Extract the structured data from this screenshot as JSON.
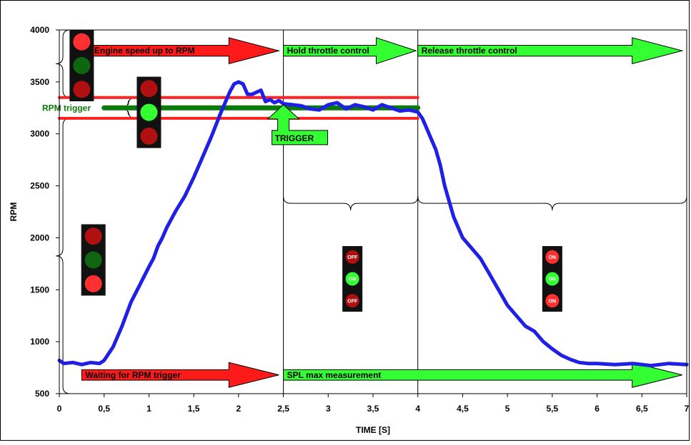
{
  "chart_data": {
    "type": "line",
    "title": "",
    "xlabel": "TIME [S]",
    "ylabel": "RPM",
    "xlim": [
      0,
      7
    ],
    "ylim": [
      500,
      4000
    ],
    "xticks": [
      "0",
      "0,5",
      "1",
      "1,5",
      "2",
      "2,5",
      "3",
      "3,5",
      "4",
      "4,5",
      "5",
      "5,5",
      "6",
      "6,5",
      "7"
    ],
    "yticks": [
      "500",
      "1000",
      "1500",
      "2000",
      "2500",
      "3000",
      "3500",
      "4000"
    ],
    "grid": false,
    "series": [
      {
        "color": "#1f1fe6",
        "x": [
          0,
          0.05,
          0.15,
          0.25,
          0.35,
          0.45,
          0.5,
          0.6,
          0.7,
          0.8,
          0.9,
          1.0,
          1.05,
          1.1,
          1.15,
          1.2,
          1.3,
          1.4,
          1.5,
          1.6,
          1.7,
          1.8,
          1.9,
          1.95,
          2.0,
          2.05,
          2.1,
          2.15,
          2.2,
          2.25,
          2.3,
          2.35,
          2.4,
          2.45,
          2.5,
          2.6,
          2.7,
          2.8,
          2.9,
          3.0,
          3.1,
          3.2,
          3.3,
          3.4,
          3.5,
          3.6,
          3.7,
          3.8,
          3.9,
          4.0,
          4.05,
          4.1,
          4.15,
          4.2,
          4.25,
          4.3,
          4.4,
          4.5,
          4.6,
          4.7,
          4.8,
          4.9,
          5.0,
          5.1,
          5.2,
          5.3,
          5.4,
          5.5,
          5.6,
          5.7,
          5.8,
          5.9,
          6.0,
          6.2,
          6.4,
          6.6,
          6.8,
          7.0
        ],
        "y": [
          820,
          790,
          800,
          780,
          800,
          790,
          820,
          950,
          1150,
          1380,
          1550,
          1720,
          1800,
          1920,
          2000,
          2100,
          2260,
          2400,
          2580,
          2780,
          2980,
          3200,
          3400,
          3480,
          3500,
          3480,
          3380,
          3380,
          3400,
          3420,
          3310,
          3330,
          3300,
          3320,
          3290,
          3280,
          3270,
          3240,
          3230,
          3280,
          3300,
          3240,
          3280,
          3260,
          3230,
          3280,
          3250,
          3220,
          3230,
          3210,
          3150,
          3050,
          2950,
          2850,
          2700,
          2500,
          2200,
          2000,
          1900,
          1800,
          1650,
          1500,
          1350,
          1250,
          1150,
          1100,
          1000,
          930,
          870,
          830,
          800,
          790,
          790,
          780,
          790,
          770,
          790,
          780
        ]
      }
    ],
    "reference_lines": [
      {
        "y": 3350,
        "x_range": [
          0,
          4.0
        ],
        "color": "#ff2020"
      },
      {
        "y": 3150,
        "x_range": [
          0,
          4.0
        ],
        "color": "#ff2020"
      },
      {
        "label": "RPM trigger",
        "y": 3250,
        "x_range": [
          0.5,
          4.0
        ],
        "color": "#0a7a0a"
      }
    ],
    "phase_dividers_x": [
      2.5,
      4.0
    ],
    "annotations": [
      {
        "id": "a1",
        "text": "Engine speed up to RPM",
        "color": "red",
        "x_range": [
          0.35,
          2.45
        ],
        "y": 3800,
        "h": 250
      },
      {
        "id": "a2",
        "text": "Hold throttle control",
        "color": "green",
        "x_range": [
          2.5,
          3.98
        ],
        "y": 3800,
        "h": 250
      },
      {
        "id": "a3",
        "text": "Release throttle control",
        "color": "green",
        "x_range": [
          4.0,
          6.95
        ],
        "y": 3800,
        "h": 250
      },
      {
        "id": "a4",
        "text": "Waiting for RPM trigger",
        "color": "red",
        "x_range": [
          0.25,
          2.45
        ],
        "y": 680,
        "h": 240
      },
      {
        "id": "a5",
        "text": "SPL max measurement",
        "color": "green",
        "x_range": [
          2.5,
          6.95
        ],
        "y": 680,
        "h": 240
      }
    ],
    "trigger_marker": {
      "text": "TRIGGER",
      "x": 2.5,
      "y_tip": 3280
    },
    "traffic_lights": [
      {
        "id": "tl1",
        "x": 0.25,
        "y_top": 4000,
        "lamps": [
          "bright-red",
          "dark-green",
          "dark-red"
        ],
        "labels": [
          "",
          "",
          ""
        ]
      },
      {
        "id": "tl2",
        "x": 1.0,
        "y_top": 3550,
        "lamps": [
          "dark-red",
          "bright-green",
          "dark-red"
        ],
        "labels": [
          "",
          "",
          ""
        ]
      },
      {
        "id": "tl3",
        "x": 0.38,
        "y_top": 2130,
        "lamps": [
          "dark-red",
          "dark-green",
          "bright-red"
        ],
        "labels": [
          "",
          "",
          ""
        ]
      },
      {
        "id": "tl4",
        "x": 3.27,
        "y_top": 1920,
        "lamps": [
          "dark-red",
          "bright-green",
          "dark-red"
        ],
        "labels": [
          "OFF",
          "ON",
          "OFF"
        ]
      },
      {
        "id": "tl5",
        "x": 5.5,
        "y_top": 1920,
        "lamps": [
          "bright-red",
          "bright-green",
          "bright-red"
        ],
        "labels": [
          "ON",
          "ON",
          "ON"
        ]
      }
    ],
    "braces": [
      {
        "id": "b1",
        "side": "left",
        "x": 0.12,
        "y_range": [
          3350,
          4000
        ]
      },
      {
        "id": "b2",
        "side": "left",
        "x": 0.85,
        "y_range": [
          3150,
          3350
        ]
      },
      {
        "id": "b3",
        "side": "left",
        "x": 0.12,
        "y_range": [
          500,
          3150
        ]
      },
      {
        "id": "b4",
        "side": "bottom",
        "y": 2400,
        "x_range": [
          2.5,
          4.0
        ]
      },
      {
        "id": "b5",
        "side": "bottom",
        "y": 2400,
        "x_range": [
          4.0,
          7.0
        ]
      }
    ]
  },
  "colors": {
    "line": "#1f1fe6",
    "red": "#ff1a1a",
    "green": "#33ff33",
    "trigger_green": "#0a7a0a",
    "bright_red": "#ff3030",
    "dark_red": "#b01010",
    "bright_green": "#33ff33",
    "dark_green": "#106610"
  }
}
